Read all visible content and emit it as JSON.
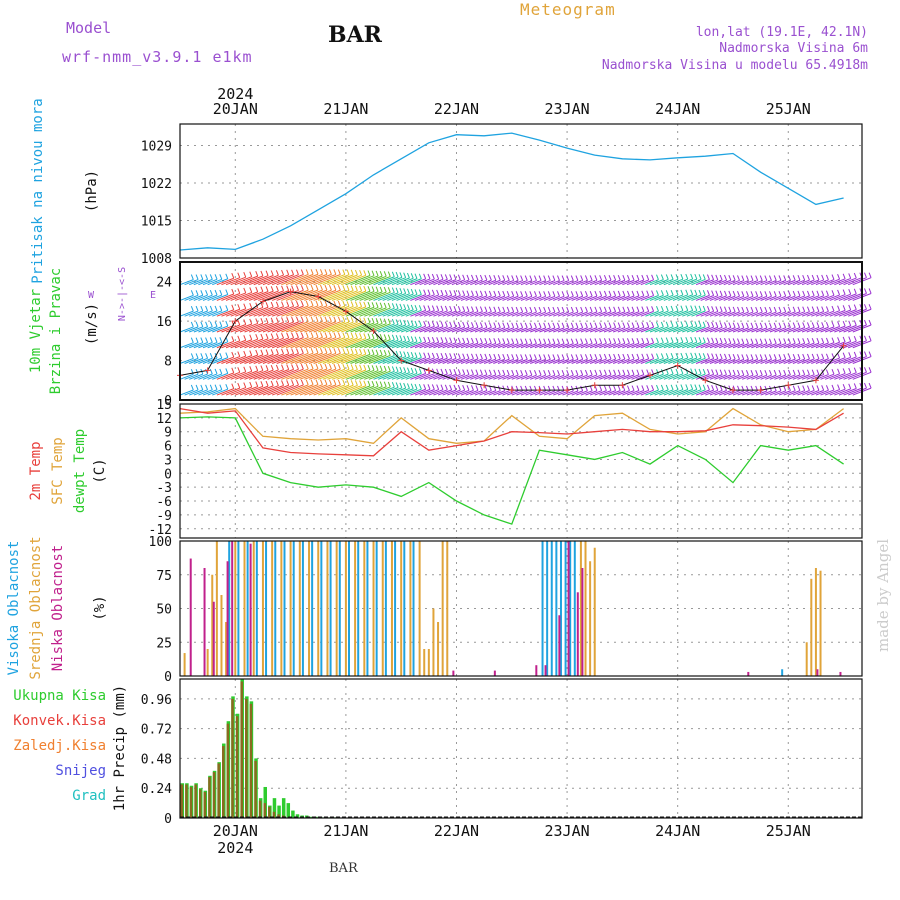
{
  "header": {
    "model_label": "Model",
    "model_name": "wrf-nmm_v3.9.1 e1km",
    "station": "BAR",
    "title": "Meteogram",
    "lonlat": "lon,lat (19.1E, 42.1N)",
    "elevation": "Nadmorska Visina 6m",
    "model_elevation": "Nadmorska Visina u modelu 65.4918m",
    "footer_station": "BAR",
    "credit": "made by Angel"
  },
  "colors": {
    "pressure": "#1fa3e0",
    "temp2m": "#e8403c",
    "sfc": "#e0a43a",
    "dewpt": "#2ecc2e",
    "high_cloud": "#1fa3e0",
    "mid_cloud": "#e0a43a",
    "low_cloud": "#c0208c",
    "total_precip": "#2ecc2e",
    "conv_precip": "#e8403c",
    "frozen_precip": "#f08030",
    "snow": "#5050e0",
    "hail": "#20c0c0",
    "wind_label": "#2ecc2e",
    "wind_dir_label": "#9a50d0",
    "grid": "#999999"
  },
  "chart_data": [
    {
      "type": "line",
      "id": "pressure",
      "ylabel": "Pritisak na nivou mora",
      "unit": "(hPa)",
      "ylim": [
        1008,
        1033
      ],
      "yticks": [
        1008,
        1015,
        1022,
        1029
      ],
      "x_hours": [
        0,
        6,
        12,
        18,
        24,
        30,
        36,
        42,
        48,
        54,
        60,
        66,
        72,
        78,
        84,
        90,
        96,
        102,
        108,
        114,
        120,
        126,
        132,
        138,
        144
      ],
      "series": [
        {
          "values": [
            1009.5,
            1009.9,
            1009.6,
            1011.5,
            1014,
            1017,
            1020,
            1023.5,
            1026.5,
            1029.5,
            1031,
            1030.8,
            1031.3,
            1030,
            1028.5,
            1027.2,
            1026.5,
            1026.3,
            1026.7,
            1027,
            1027.5,
            1024,
            1021,
            1018,
            1019.2
          ]
        }
      ]
    },
    {
      "type": "line",
      "id": "wind",
      "ylabel": "10m Vjetar",
      "ylabel2": "Brzina i Pravac",
      "unit": "(m/s)",
      "direction_legend": {
        "west": "W",
        "north": "N",
        "south": "S",
        "east": "E"
      },
      "ylim": [
        0,
        28
      ],
      "yticks": [
        0,
        8,
        16,
        24
      ],
      "x_hours": [
        0,
        6,
        12,
        18,
        24,
        30,
        36,
        42,
        48,
        54,
        60,
        66,
        72,
        78,
        84,
        90,
        96,
        102,
        108,
        114,
        120,
        126,
        132,
        138,
        144
      ],
      "series": [
        {
          "name": "speed",
          "values": [
            5,
            6,
            16,
            20,
            22,
            21,
            18,
            14,
            8,
            6,
            4,
            3,
            2,
            2,
            2,
            3,
            3,
            5,
            7,
            4,
            2,
            2,
            3,
            4,
            11
          ]
        }
      ]
    },
    {
      "type": "line",
      "id": "temperature",
      "series_labels": [
        "2m Temp",
        "SFC Temp",
        "dewpt Temp"
      ],
      "unit": "(C)",
      "ylim": [
        -14,
        15
      ],
      "yticks": [
        -12,
        -9,
        -6,
        -3,
        0,
        3,
        6,
        9,
        12,
        15
      ],
      "x_hours": [
        0,
        6,
        12,
        18,
        24,
        30,
        36,
        42,
        48,
        54,
        60,
        66,
        72,
        78,
        84,
        90,
        96,
        102,
        108,
        114,
        120,
        126,
        132,
        138,
        144
      ],
      "series": [
        {
          "name": "2m Temp",
          "values": [
            14,
            13,
            13.5,
            5.5,
            4.5,
            4.2,
            4,
            3.8,
            9,
            5,
            6,
            7,
            9,
            8.8,
            8.5,
            9,
            9.5,
            9,
            9,
            9.2,
            10.5,
            10.3,
            10,
            9.5,
            13
          ]
        },
        {
          "name": "SFC Temp",
          "values": [
            13,
            13.3,
            14,
            8,
            7.5,
            7.2,
            7.5,
            6.5,
            12,
            7.5,
            6.5,
            7,
            12.5,
            8,
            7.5,
            12.5,
            13,
            9.5,
            8.5,
            9,
            14,
            10.5,
            9,
            9.5,
            14
          ]
        },
        {
          "name": "dewpt Temp",
          "values": [
            12,
            12.2,
            12,
            0,
            -2,
            -3,
            -2.5,
            -3,
            -5,
            -2,
            -6,
            -9,
            -11,
            5,
            4,
            3,
            4.5,
            2,
            6,
            3,
            -2,
            6,
            5,
            6,
            2
          ]
        }
      ]
    },
    {
      "type": "bar",
      "id": "clouds",
      "series_labels": [
        "Visoka Oblacnost",
        "Srednja Oblacnost",
        "Niska Oblacnost"
      ],
      "unit": "(%)",
      "ylim": [
        0,
        100
      ],
      "yticks": [
        0,
        25,
        50,
        75,
        100
      ],
      "series": [
        {
          "name": "Visoka Oblacnost",
          "points": [
            [
              11,
              100
            ],
            [
              13,
              100
            ],
            [
              15,
              100
            ],
            [
              17,
              100
            ],
            [
              19,
              100
            ],
            [
              21,
              100
            ],
            [
              23,
              100
            ],
            [
              25,
              100
            ],
            [
              27,
              100
            ],
            [
              29,
              100
            ],
            [
              31,
              100
            ],
            [
              33,
              100
            ],
            [
              35,
              100
            ],
            [
              37,
              100
            ],
            [
              39,
              100
            ],
            [
              41,
              100
            ],
            [
              43,
              100
            ],
            [
              45,
              100
            ],
            [
              47,
              100
            ],
            [
              49,
              100
            ],
            [
              51,
              100
            ],
            [
              79,
              100
            ],
            [
              80,
              100
            ],
            [
              81,
              100
            ],
            [
              82,
              100
            ],
            [
              83,
              100
            ],
            [
              84,
              100
            ],
            [
              85,
              100
            ],
            [
              86,
              100
            ],
            [
              131,
              5
            ]
          ]
        },
        {
          "name": "Srednja Oblacnost",
          "points": [
            [
              1,
              17
            ],
            [
              6,
              20
            ],
            [
              7,
              75
            ],
            [
              8,
              100
            ],
            [
              9,
              60
            ],
            [
              10,
              40
            ],
            [
              12,
              100
            ],
            [
              14,
              100
            ],
            [
              16,
              100
            ],
            [
              18,
              100
            ],
            [
              20,
              100
            ],
            [
              22,
              100
            ],
            [
              24,
              100
            ],
            [
              26,
              100
            ],
            [
              28,
              100
            ],
            [
              30,
              100
            ],
            [
              32,
              100
            ],
            [
              34,
              100
            ],
            [
              36,
              100
            ],
            [
              38,
              100
            ],
            [
              40,
              100
            ],
            [
              42,
              100
            ],
            [
              44,
              100
            ],
            [
              46,
              100
            ],
            [
              48,
              100
            ],
            [
              50,
              100
            ],
            [
              52,
              100
            ],
            [
              53,
              20
            ],
            [
              54,
              20
            ],
            [
              55,
              50
            ],
            [
              56,
              40
            ],
            [
              57,
              100
            ],
            [
              58,
              100
            ],
            [
              87,
              100
            ],
            [
              88,
              100
            ],
            [
              89,
              85
            ],
            [
              90,
              95
            ],
            [
              136,
              25
            ],
            [
              137,
              72
            ],
            [
              138,
              80
            ],
            [
              139,
              78
            ]
          ]
        },
        {
          "name": "Niska Oblacnost",
          "points": [
            [
              2,
              87
            ],
            [
              5,
              80
            ],
            [
              7,
              55
            ],
            [
              10,
              85
            ],
            [
              11,
              100
            ],
            [
              15,
              98
            ],
            [
              59,
              4
            ],
            [
              68,
              4
            ],
            [
              77,
              8
            ],
            [
              79,
              8
            ],
            [
              82,
              45
            ],
            [
              84,
              100
            ],
            [
              86,
              62
            ],
            [
              87,
              80
            ],
            [
              123,
              3
            ],
            [
              138,
              5
            ],
            [
              143,
              3
            ]
          ]
        }
      ]
    },
    {
      "type": "bar",
      "id": "precip",
      "series_labels": [
        "Ukupna Kisa",
        "Konvek.Kisa",
        "Zaledj.Kisa",
        "Snijeg",
        "Grad"
      ],
      "unit": "1hr Precip (mm)",
      "ylim": [
        0,
        1.12
      ],
      "yticks": [
        0,
        0.24,
        0.48,
        0.72,
        0.96
      ],
      "series": [
        {
          "name": "Ukupna Kisa",
          "points": [
            [
              0,
              0.28
            ],
            [
              1,
              0.28
            ],
            [
              2,
              0.26
            ],
            [
              3,
              0.28
            ],
            [
              4,
              0.24
            ],
            [
              5,
              0.22
            ],
            [
              6,
              0.34
            ],
            [
              7,
              0.38
            ],
            [
              8,
              0.45
            ],
            [
              9,
              0.6
            ],
            [
              10,
              0.78
            ],
            [
              11,
              0.98
            ],
            [
              12,
              0.84
            ],
            [
              13,
              1.12
            ],
            [
              14,
              0.98
            ],
            [
              15,
              0.94
            ],
            [
              16,
              0.48
            ],
            [
              17,
              0.16
            ],
            [
              18,
              0.25
            ],
            [
              19,
              0.1
            ],
            [
              20,
              0.16
            ],
            [
              21,
              0.1
            ],
            [
              22,
              0.16
            ],
            [
              23,
              0.12
            ],
            [
              24,
              0.06
            ],
            [
              25,
              0.03
            ],
            [
              26,
              0.02
            ],
            [
              27,
              0.02
            ],
            [
              28,
              0.01
            ],
            [
              29,
              0.01
            ],
            [
              30,
              0.01
            ],
            [
              31,
              0.005
            ],
            [
              32,
              0.005
            ],
            [
              33,
              0.005
            ],
            [
              34,
              0.003
            ],
            [
              35,
              0.003
            ],
            [
              36,
              0.002
            ],
            [
              37,
              0.002
            ],
            [
              38,
              0.002
            ],
            [
              39,
              0.002
            ],
            [
              40,
              0.002
            ],
            [
              41,
              0.001
            ],
            [
              42,
              0.001
            ],
            [
              43,
              0.001
            ]
          ]
        },
        {
          "name": "Konvek.Kisa",
          "points": [
            [
              0,
              0.27
            ],
            [
              1,
              0.27
            ],
            [
              2,
              0.25
            ],
            [
              3,
              0.27
            ],
            [
              4,
              0.23
            ],
            [
              5,
              0.21
            ],
            [
              6,
              0.33
            ],
            [
              7,
              0.37
            ],
            [
              8,
              0.44
            ],
            [
              9,
              0.58
            ],
            [
              10,
              0.76
            ],
            [
              11,
              0.96
            ],
            [
              12,
              0.82
            ],
            [
              13,
              1.1
            ],
            [
              14,
              0.96
            ],
            [
              15,
              0.92
            ],
            [
              16,
              0.46
            ],
            [
              17,
              0.14
            ],
            [
              18,
              0.12
            ],
            [
              19,
              0.09
            ],
            [
              20,
              0.05
            ],
            [
              21,
              0.03
            ],
            [
              22,
              0.02
            ]
          ]
        }
      ]
    }
  ],
  "x_axis": {
    "top_year": "2024",
    "bottom_year": "2024",
    "days": [
      "20JAN",
      "21JAN",
      "22JAN",
      "23JAN",
      "24JAN",
      "25JAN"
    ],
    "day_hours": [
      12,
      36,
      60,
      84,
      108,
      132
    ],
    "range_hours": [
      0,
      148
    ]
  }
}
